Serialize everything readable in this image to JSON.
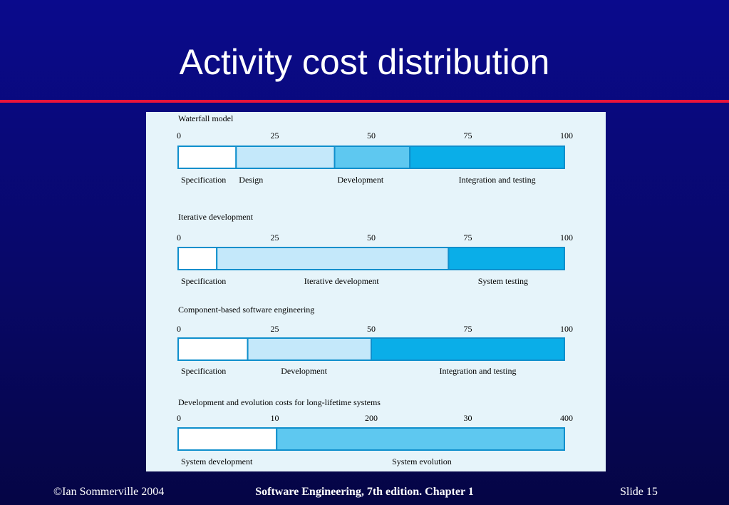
{
  "slide": {
    "title": "Activity cost distribution",
    "footer_left": "©Ian Sommerville 2004",
    "footer_center": "Software Engineering, 7th edition. Chapter 1",
    "footer_right": "Slide  15"
  },
  "colors": {
    "white": "#ffffff",
    "pale": "#c4e8fa",
    "mid": "#5ec8f0",
    "strong": "#0aaee8",
    "border": "#0f8fcc"
  },
  "chart_data": [
    {
      "type": "bar",
      "title": "Waterfall model",
      "ticks": [
        "0",
        "25",
        "50",
        "75",
        "100"
      ],
      "segments": [
        {
          "label": "Specification",
          "start": 0,
          "end": 15,
          "color": "#ffffff"
        },
        {
          "label": "Design",
          "start": 15,
          "end": 40.5,
          "color": "#c4e8fa"
        },
        {
          "label": "Development",
          "start": 40.5,
          "end": 60,
          "color": "#5ec8f0"
        },
        {
          "label": "Integration and testing",
          "start": 60,
          "end": 100,
          "color": "#0aaee8"
        }
      ]
    },
    {
      "type": "bar",
      "title": "Iterative development",
      "ticks": [
        "0",
        "25",
        "50",
        "75",
        "100"
      ],
      "segments": [
        {
          "label": "Specification",
          "start": 0,
          "end": 10,
          "color": "#ffffff"
        },
        {
          "label": "Iterative development",
          "start": 10,
          "end": 70,
          "color": "#c4e8fa"
        },
        {
          "label": "System testing",
          "start": 70,
          "end": 100,
          "color": "#0aaee8"
        }
      ]
    },
    {
      "type": "bar",
      "title": "Component-based software engineering",
      "ticks": [
        "0",
        "25",
        "50",
        "75",
        "100"
      ],
      "segments": [
        {
          "label": "Specification",
          "start": 0,
          "end": 18,
          "color": "#ffffff"
        },
        {
          "label": "Development",
          "start": 18,
          "end": 50,
          "color": "#c4e8fa"
        },
        {
          "label": "Integration and testing",
          "start": 50,
          "end": 100,
          "color": "#0aaee8"
        }
      ]
    },
    {
      "type": "bar",
      "title": "Development and evolution costs for long-lifetime systems",
      "ticks": [
        "0",
        "10",
        "200",
        "30",
        "400"
      ],
      "segments": [
        {
          "label": "System development",
          "start": 0,
          "end": 25.5,
          "color": "#ffffff"
        },
        {
          "label": "System evolution",
          "start": 25.5,
          "end": 100,
          "color": "#5ec8f0"
        }
      ]
    }
  ]
}
